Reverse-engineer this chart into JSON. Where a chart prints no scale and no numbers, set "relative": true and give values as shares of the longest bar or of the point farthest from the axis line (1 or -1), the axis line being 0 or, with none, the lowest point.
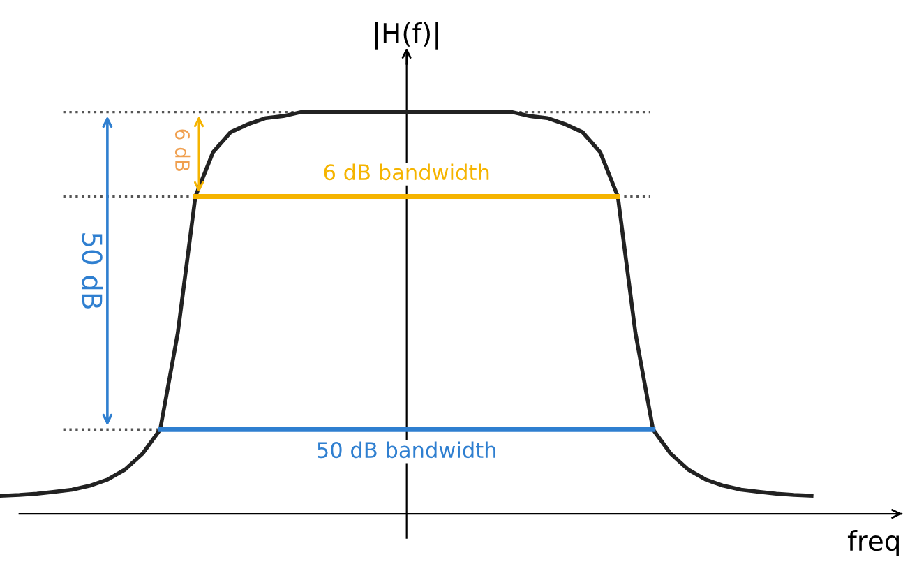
{
  "chart_data": {
    "type": "line",
    "relative": true,
    "legend": false,
    "marker": "none",
    "line_style": "solid",
    "xlabel": "freq",
    "ylabel": "|H(f)|",
    "categories": [
      null,
      null,
      null,
      null,
      null,
      null,
      null,
      null,
      null,
      null,
      null,
      null,
      null,
      null,
      null,
      null,
      null,
      null,
      null,
      null,
      null,
      null,
      null,
      null,
      null,
      null,
      null,
      null,
      null,
      null,
      null,
      null,
      null,
      null,
      null,
      null,
      null,
      null,
      null,
      null,
      null,
      null,
      null,
      null,
      null,
      null,
      null
    ],
    "series": [
      {
        "color": "#222222",
        "values": [
          0.045,
          0.047,
          0.05,
          0.055,
          0.06,
          0.07,
          0.085,
          0.11,
          0.15,
          0.21,
          0.45,
          0.79,
          0.9,
          0.95,
          0.97,
          0.985,
          0.99,
          1,
          1,
          1,
          1,
          1,
          1,
          1,
          1,
          1,
          1,
          1,
          1,
          1,
          0.99,
          0.985,
          0.97,
          0.95,
          0.9,
          0.79,
          0.45,
          0.21,
          0.15,
          0.11,
          0.085,
          0.07,
          0.06,
          0.055,
          0.05,
          0.047,
          0.045
        ]
      },
      {
        "name": "6 dB bandwidth",
        "color": "#f5b400",
        "values": [
          null,
          null,
          null,
          null,
          null,
          null,
          null,
          null,
          null,
          null,
          null,
          0.79,
          0.79,
          0.79,
          0.79,
          0.79,
          0.79,
          0.79,
          0.79,
          0.79,
          0.79,
          0.79,
          0.79,
          0.79,
          0.79,
          0.79,
          0.79,
          0.79,
          0.79,
          0.79,
          0.79,
          0.79,
          0.79,
          0.79,
          0.79,
          0.79,
          null,
          null,
          null,
          null,
          null,
          null,
          null,
          null,
          null,
          null,
          null
        ]
      },
      {
        "name": "50 dB bandwidth",
        "color": "#2f7fd0",
        "values": [
          null,
          null,
          null,
          null,
          null,
          null,
          null,
          null,
          null,
          0.21,
          0.21,
          0.21,
          0.21,
          0.21,
          0.21,
          0.21,
          0.21,
          0.21,
          0.21,
          0.21,
          0.21,
          0.21,
          0.21,
          0.21,
          0.21,
          0.21,
          0.21,
          0.21,
          0.21,
          0.21,
          0.21,
          0.21,
          0.21,
          0.21,
          0.21,
          0.21,
          0.21,
          0.21,
          null,
          null,
          null,
          null,
          null,
          null,
          null,
          null,
          null
        ]
      }
    ],
    "ref_lines": [
      {
        "axis": "y",
        "value": 1,
        "color": "#555555",
        "line_style": "dotted"
      },
      {
        "axis": "y",
        "value": 0.79,
        "color": "#555555",
        "line_style": "dotted"
      },
      {
        "axis": "y",
        "value": 0.21,
        "color": "#555555",
        "line_style": "dotted"
      }
    ],
    "annotations": [
      "50 dB",
      "6 dB"
    ]
  }
}
